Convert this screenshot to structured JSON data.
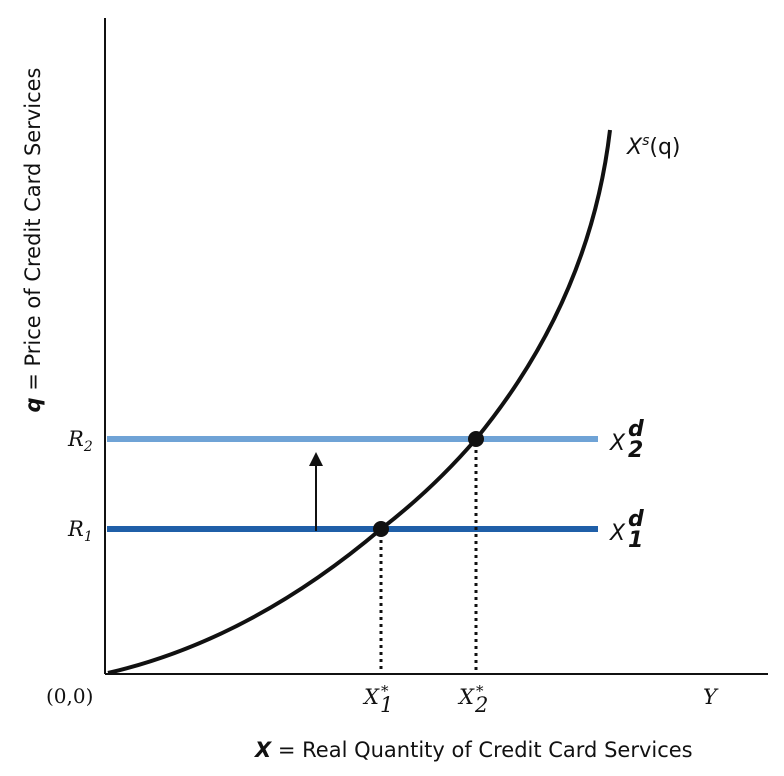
{
  "y_axis": {
    "variable": "q",
    "label": " = Price of Credit Card Services",
    "tick_r1": "R",
    "tick_r1_sub": "1",
    "tick_r2": "R",
    "tick_r2_sub": "2"
  },
  "x_axis": {
    "variable": "X",
    "label": " = Real Quantity of Credit Card Services",
    "origin": "(0,0)",
    "end_label": "Y",
    "tick_x1": "X",
    "tick_x1_sub": "1",
    "tick_x1_sup": "*",
    "tick_x2": "X",
    "tick_x2_sub": "2",
    "tick_x2_sup": "*"
  },
  "curves": {
    "supply_base": "X",
    "supply_sup": "s",
    "supply_arg": "(q)",
    "demand1_base": "X",
    "demand1_sub": "1",
    "demand1_sup": "d",
    "demand2_base": "X",
    "demand2_sub": "2",
    "demand2_sup": "d"
  },
  "colors": {
    "demand1": "#1f5fa8",
    "demand2": "#6fa3d6",
    "supply": "#111111"
  }
}
